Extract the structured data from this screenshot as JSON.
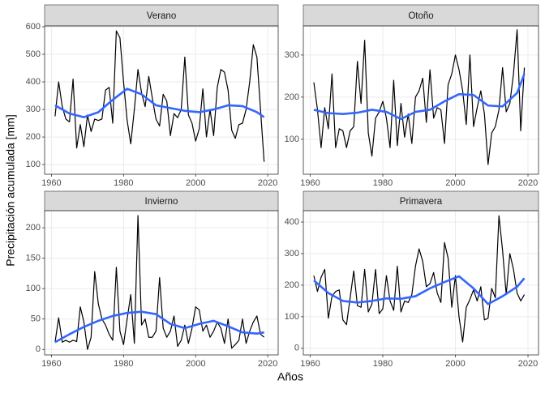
{
  "chart_data": {
    "type": "facet-line",
    "xlabel": "Años",
    "ylabel": "Precipitación acumulada [mm]",
    "panels": [
      {
        "type": "line",
        "title": "Verano",
        "xlim": [
          1958.1,
          2022.9
        ],
        "xticks": [
          1960,
          1980,
          2000,
          2020
        ],
        "ylim": [
          65,
          603
        ],
        "yticks": [
          100,
          200,
          300,
          400,
          500,
          600
        ],
        "grid": true,
        "x": [
          1961,
          1962,
          1963,
          1964,
          1965,
          1966,
          1967,
          1968,
          1969,
          1970,
          1971,
          1972,
          1973,
          1974,
          1975,
          1976,
          1977,
          1978,
          1979,
          1980,
          1981,
          1982,
          1983,
          1984,
          1985,
          1986,
          1987,
          1988,
          1989,
          1990,
          1991,
          1992,
          1993,
          1994,
          1995,
          1996,
          1997,
          1998,
          1999,
          2000,
          2001,
          2002,
          2003,
          2004,
          2005,
          2006,
          2007,
          2008,
          2009,
          2010,
          2011,
          2012,
          2013,
          2014,
          2015,
          2016,
          2017,
          2018,
          2019
        ],
        "series": [
          {
            "color": "#000000",
            "values": [
              275,
              400,
              310,
              265,
              255,
              410,
              160,
              245,
              165,
              280,
              220,
              265,
              260,
              265,
              370,
              380,
              250,
              585,
              560,
              400,
              260,
              175,
              300,
              445,
              360,
              310,
              420,
              340,
              265,
              240,
              355,
              330,
              205,
              285,
              270,
              300,
              490,
              280,
              250,
              185,
              230,
              375,
              200,
              300,
              205,
              380,
              445,
              435,
              370,
              225,
              195,
              245,
              250,
              300,
              400,
              535,
              490,
              300,
              110
            ]
          },
          {
            "color": "#3366ff",
            "x": [
              1961,
              1965,
              1969,
              1973,
              1977,
              1981,
              1985,
              1989,
              1993,
              1997,
              2001,
              2005,
              2009,
              2013,
              2017,
              2019
            ],
            "values": [
              315,
              285,
              272,
              290,
              335,
              375,
              355,
              315,
              305,
              295,
              290,
              300,
              315,
              312,
              290,
              272
            ]
          }
        ]
      },
      {
        "type": "line",
        "title": "Otoño",
        "xlim": [
          1958.1,
          2022.9
        ],
        "xticks": [
          1960,
          1980,
          2000,
          2020
        ],
        "ylim": [
          17,
          369
        ],
        "yticks": [
          100,
          200,
          300
        ],
        "grid": true,
        "x": [
          1961,
          1962,
          1963,
          1964,
          1965,
          1966,
          1967,
          1968,
          1969,
          1970,
          1971,
          1972,
          1973,
          1974,
          1975,
          1976,
          1977,
          1978,
          1979,
          1980,
          1981,
          1982,
          1983,
          1984,
          1985,
          1986,
          1987,
          1988,
          1989,
          1990,
          1991,
          1992,
          1993,
          1994,
          1995,
          1996,
          1997,
          1998,
          1999,
          2000,
          2001,
          2002,
          2003,
          2004,
          2005,
          2006,
          2007,
          2008,
          2009,
          2010,
          2011,
          2012,
          2013,
          2014,
          2015,
          2016,
          2017,
          2018,
          2019
        ],
        "series": [
          {
            "color": "#000000",
            "values": [
              235,
              170,
              80,
              175,
              125,
              255,
              80,
              125,
              120,
              80,
              120,
              130,
              285,
              185,
              335,
              115,
              60,
              150,
              165,
              190,
              150,
              80,
              240,
              85,
              185,
              105,
              160,
              90,
              200,
              215,
              245,
              140,
              265,
              150,
              175,
              170,
              90,
              230,
              255,
              300,
              265,
              215,
              135,
              300,
              130,
              175,
              215,
              160,
              40,
              115,
              130,
              170,
              270,
              165,
              185,
              255,
              360,
              120,
              270
            ]
          },
          {
            "color": "#3366ff",
            "x": [
              1961,
              1965,
              1969,
              1973,
              1977,
              1981,
              1985,
              1989,
              1993,
              1997,
              2001,
              2005,
              2009,
              2013,
              2017,
              2019
            ],
            "values": [
              170,
              162,
              160,
              163,
              170,
              165,
              148,
              165,
              170,
              190,
              207,
              205,
              180,
              178,
              210,
              255
            ]
          }
        ]
      },
      {
        "type": "line",
        "title": "Invierno",
        "xlim": [
          1958.1,
          2022.9
        ],
        "xticks": [
          1960,
          1980,
          2000,
          2020
        ],
        "ylim": [
          -9,
          228
        ],
        "yticks": [
          0,
          50,
          100,
          150,
          200
        ],
        "grid": true,
        "x": [
          1961,
          1962,
          1963,
          1964,
          1965,
          1966,
          1967,
          1968,
          1969,
          1970,
          1971,
          1972,
          1973,
          1974,
          1975,
          1976,
          1977,
          1978,
          1979,
          1980,
          1981,
          1982,
          1983,
          1984,
          1985,
          1986,
          1987,
          1988,
          1989,
          1990,
          1991,
          1992,
          1993,
          1994,
          1995,
          1996,
          1997,
          1998,
          1999,
          2000,
          2001,
          2002,
          2003,
          2004,
          2005,
          2006,
          2007,
          2008,
          2009,
          2010,
          2011,
          2012,
          2013,
          2014,
          2015,
          2016,
          2017,
          2018,
          2019
        ],
        "series": [
          {
            "color": "#000000",
            "values": [
              12,
              52,
              12,
              15,
              12,
              15,
              13,
              70,
              45,
              0,
              20,
              128,
              75,
              50,
              40,
              25,
              15,
              135,
              30,
              8,
              50,
              90,
              10,
              220,
              40,
              50,
              20,
              20,
              30,
              118,
              35,
              20,
              30,
              55,
              5,
              15,
              40,
              10,
              35,
              70,
              65,
              30,
              40,
              20,
              30,
              45,
              35,
              10,
              50,
              2,
              8,
              15,
              50,
              10,
              30,
              45,
              55,
              25,
              20
            ]
          },
          {
            "color": "#3366ff",
            "x": [
              1961,
              1965,
              1969,
              1973,
              1977,
              1981,
              1985,
              1989,
              1993,
              1997,
              2001,
              2005,
              2009,
              2013,
              2017,
              2019
            ],
            "values": [
              12,
              25,
              37,
              47,
              55,
              60,
              62,
              58,
              42,
              35,
              42,
              47,
              38,
              28,
              26,
              28
            ]
          }
        ]
      },
      {
        "type": "line",
        "title": "Primavera",
        "xlim": [
          1958.1,
          2022.9
        ],
        "xticks": [
          1960,
          1980,
          2000,
          2020
        ],
        "ylim": [
          -21,
          436
        ],
        "yticks": [
          0,
          100,
          200,
          300,
          400
        ],
        "grid": true,
        "x": [
          1961,
          1962,
          1963,
          1964,
          1965,
          1966,
          1967,
          1968,
          1969,
          1970,
          1971,
          1972,
          1973,
          1974,
          1975,
          1976,
          1977,
          1978,
          1979,
          1980,
          1981,
          1982,
          1983,
          1984,
          1985,
          1986,
          1987,
          1988,
          1989,
          1990,
          1991,
          1992,
          1993,
          1994,
          1995,
          1996,
          1997,
          1998,
          1999,
          2000,
          2001,
          2002,
          2003,
          2004,
          2005,
          2006,
          2007,
          2008,
          2009,
          2010,
          2011,
          2012,
          2013,
          2014,
          2015,
          2016,
          2017,
          2018,
          2019
        ],
        "series": [
          {
            "color": "#000000",
            "values": [
              230,
              180,
              225,
              250,
              95,
              165,
              180,
              185,
              90,
              75,
              160,
              245,
              135,
              130,
              250,
              115,
              140,
              250,
              110,
              125,
              230,
              150,
              120,
              260,
              115,
              150,
              145,
              170,
              260,
              315,
              275,
              195,
              205,
              240,
              175,
              145,
              335,
              285,
              130,
              230,
              100,
              20,
              130,
              155,
              185,
              150,
              195,
              90,
              95,
              190,
              160,
              420,
              310,
              170,
              300,
              250,
              175,
              150,
              170
            ]
          },
          {
            "color": "#3366ff",
            "x": [
              1961,
              1965,
              1969,
              1973,
              1977,
              1981,
              1985,
              1989,
              1993,
              1997,
              2001,
              2005,
              2009,
              2013,
              2017,
              2019
            ],
            "values": [
              215,
              175,
              150,
              145,
              150,
              158,
              157,
              165,
              190,
              210,
              228,
              190,
              140,
              165,
              195,
              222
            ]
          }
        ]
      }
    ]
  }
}
